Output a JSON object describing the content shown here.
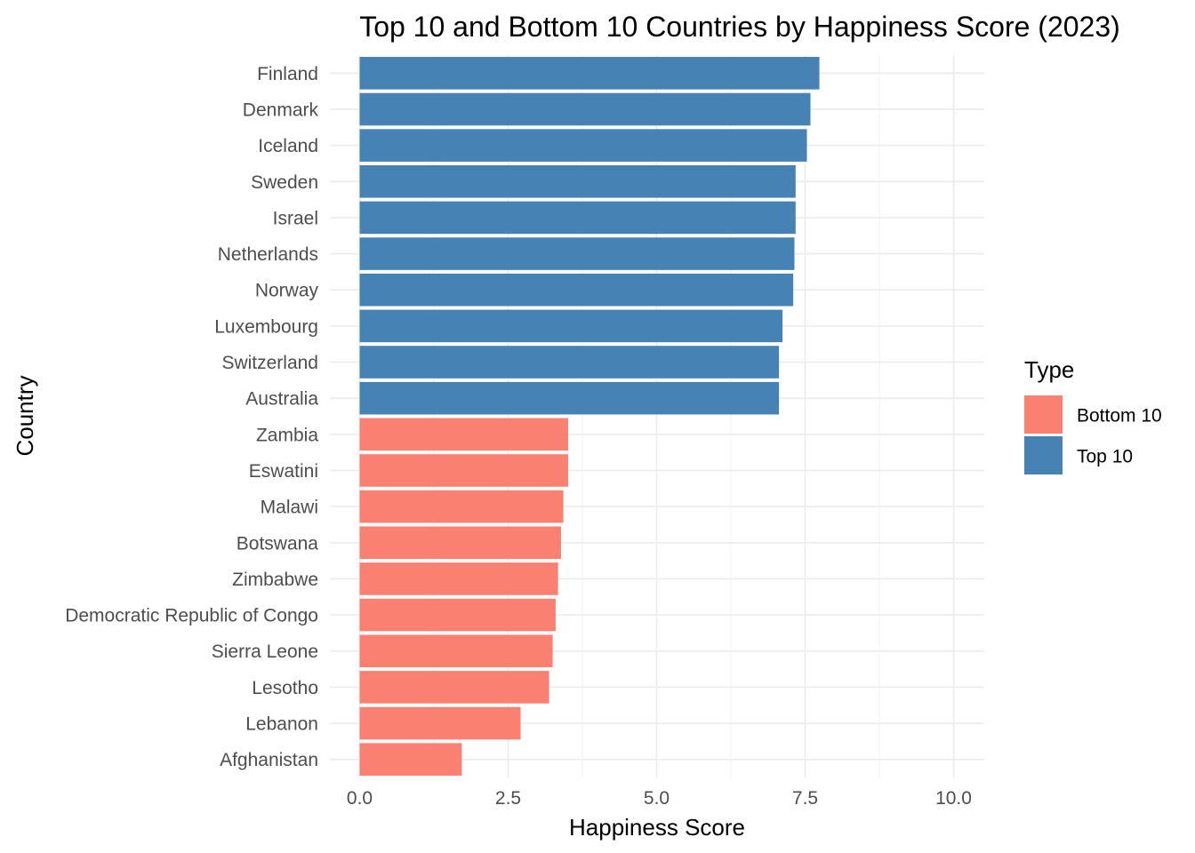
{
  "chart_data": {
    "type": "bar",
    "orientation": "horizontal",
    "title": "Top 10 and Bottom 10 Countries by Happiness Score (2023)",
    "xlabel": "Happiness Score",
    "ylabel": "Country",
    "xlim": [
      0,
      10.5
    ],
    "x_ticks": [
      0,
      2.5,
      5,
      7.5,
      10
    ],
    "x_tick_labels": [
      "0.0",
      "2.5",
      "5.0",
      "7.5",
      "10.0"
    ],
    "grid": true,
    "legend": {
      "title": "Type",
      "position": "right",
      "entries": [
        {
          "label": "Bottom 10",
          "color": "#FA8072"
        },
        {
          "label": "Top 10",
          "color": "#4682B4"
        }
      ]
    },
    "categories": [
      "Finland",
      "Denmark",
      "Iceland",
      "Sweden",
      "Israel",
      "Netherlands",
      "Norway",
      "Luxembourg",
      "Switzerland",
      "Australia",
      "Zambia",
      "Eswatini",
      "Malawi",
      "Botswana",
      "Zimbabwe",
      "Democratic Republic of Congo",
      "Sierra Leone",
      "Lesotho",
      "Lebanon",
      "Afghanistan"
    ],
    "values": [
      7.74,
      7.59,
      7.53,
      7.34,
      7.34,
      7.32,
      7.3,
      7.12,
      7.06,
      7.06,
      3.51,
      3.51,
      3.43,
      3.39,
      3.34,
      3.3,
      3.25,
      3.19,
      2.71,
      1.72
    ],
    "types": [
      "Top 10",
      "Top 10",
      "Top 10",
      "Top 10",
      "Top 10",
      "Top 10",
      "Top 10",
      "Top 10",
      "Top 10",
      "Top 10",
      "Bottom 10",
      "Bottom 10",
      "Bottom 10",
      "Bottom 10",
      "Bottom 10",
      "Bottom 10",
      "Bottom 10",
      "Bottom 10",
      "Bottom 10",
      "Bottom 10"
    ],
    "colors": {
      "Top 10": "#4682B4",
      "Bottom 10": "#FA8072"
    }
  }
}
